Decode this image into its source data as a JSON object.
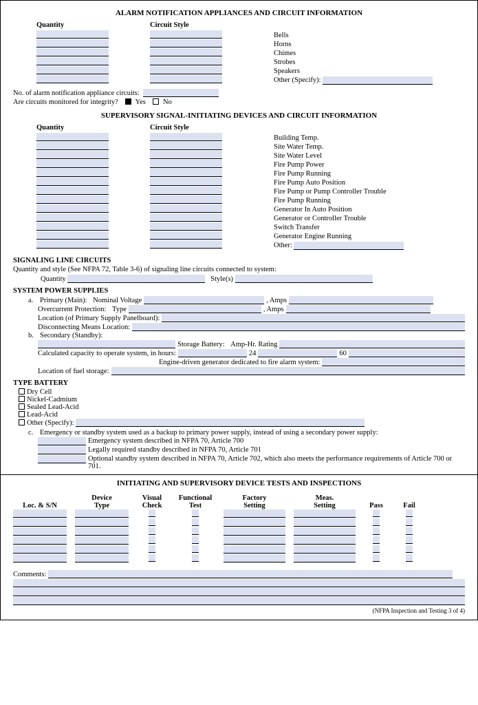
{
  "colors": {
    "field_bg": "#dbe1f1",
    "text": "#000000",
    "page_bg": "#ffffff"
  },
  "section1": {
    "title": "ALARM NOTIFICATION APPLIANCES AND CIRCUIT INFORMATION",
    "col_qty": "Quantity",
    "col_style": "Circuit Style",
    "devices": [
      "Bells",
      "Horns",
      "Chimes",
      "Strobes",
      "Speakers",
      "Other (Specify):"
    ],
    "row_count": 6,
    "circuits_count_label": "No. of alarm notification appliance circuits:",
    "integrity_label": "Are circuits monitored for integrity?",
    "yes": "Yes",
    "no": "No"
  },
  "section2": {
    "title": "SUPERVISORY SIGNAL-INITIATING DEVICES AND CIRCUIT INFORMATION",
    "col_qty": "Quantity",
    "col_style": "Circuit Style",
    "devices": [
      "Building Temp.",
      "Site Water Temp.",
      "Site Water Level",
      "Fire Pump Power",
      "Fire Pump Running",
      "Fire Pump Auto Position",
      "Fire Pump or Pump Controller Trouble",
      "Fire Pump Running",
      "Generator In Auto Position",
      "Generator or Controller Trouble",
      "Switch Transfer",
      "Generator Engine Running",
      "Other:"
    ],
    "row_count": 13
  },
  "slc": {
    "heading": "SIGNALING LINE CIRCUITS",
    "intro": "Quantity and style (See NFPA 72, Table 3-6) of signaling line circuits connected to system:",
    "qty": "Quantity",
    "styles": "Style(s)"
  },
  "sps": {
    "heading": "SYSTEM POWER SUPPLIES",
    "a_label": "a.",
    "primary": "Primary (Main):",
    "nominal": "Nominal Voltage",
    "amps": ", Amps",
    "ocp": "Overcurrent Protection:",
    "type": "Type",
    "loc_panel": "Location (of Primary Supply Panelboard):",
    "disc": "Disconnecting Means Location:",
    "b_label": "b.",
    "secondary": "Secondary (Standby):",
    "storage": "Storage Battery:",
    "amphr": "Amp-Hr. Rating",
    "calc": "Calculated capacity to operate system, in hours:",
    "h24": "24",
    "h60": "60",
    "engine": "Engine-driven generator dedicated to fire alarm system:",
    "fuel": "Location of fuel storage:"
  },
  "battery": {
    "heading": "TYPE BATTERY",
    "options": [
      "Dry Cell",
      "Nickel-Cadmium",
      "Sealed Lead-Acid",
      "Lead-Acid",
      "Other (Specify):"
    ],
    "c_label": "c.",
    "c_intro": "Emergency or standby system used as a backup to primary power supply, instead of using a secondary power supply:",
    "c_items": [
      "Emergency system described in NFPA 70, Article 700",
      "Legally required standby described in NFPA 70, Article 701",
      "Optional standby system described in NFPA 70, Article 702, which also meets the performance requirements of Article 700 or 701."
    ]
  },
  "tests": {
    "title": "INITIATING AND SUPERVISORY DEVICE TESTS AND INSPECTIONS",
    "cols": [
      "Loc. & S/N",
      "Device\nType",
      "Visual\nCheck",
      "Functional\nTest",
      "Factory\nSetting",
      "Meas.\nSetting",
      "Pass",
      "Fail"
    ],
    "row_count": 6,
    "comments": "Comments:",
    "extra_lines": 3
  },
  "footer": "(NFPA Inspection and Testing 3 of 4)"
}
